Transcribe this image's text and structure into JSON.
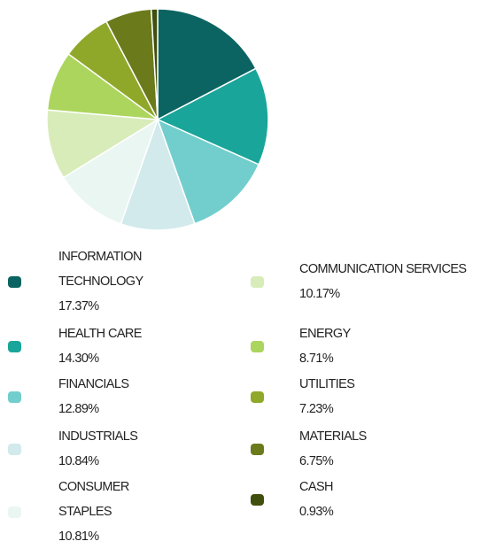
{
  "chart_data": {
    "type": "pie",
    "categories": [
      "INFORMATION TECHNOLOGY",
      "HEALTH CARE",
      "FINANCIALS",
      "INDUSTRIALS",
      "CONSUMER STAPLES",
      "COMMUNICATION SERVICES",
      "ENERGY",
      "UTILITIES",
      "MATERIALS",
      "CASH"
    ],
    "values": [
      17.37,
      14.3,
      12.89,
      10.84,
      10.81,
      10.17,
      8.71,
      7.23,
      6.75,
      0.93
    ],
    "value_labels": [
      "17.37%",
      "14.30%",
      "12.89%",
      "10.84%",
      "10.81%",
      "10.17%",
      "8.71%",
      "7.23%",
      "6.75%",
      "0.93%"
    ],
    "colors": [
      "#0b6461",
      "#1aa59a",
      "#72cecd",
      "#d2eaec",
      "#eaf6f2",
      "#d8ecba",
      "#acd55e",
      "#8fa82a",
      "#6b7a1a",
      "#404f0c"
    ]
  }
}
